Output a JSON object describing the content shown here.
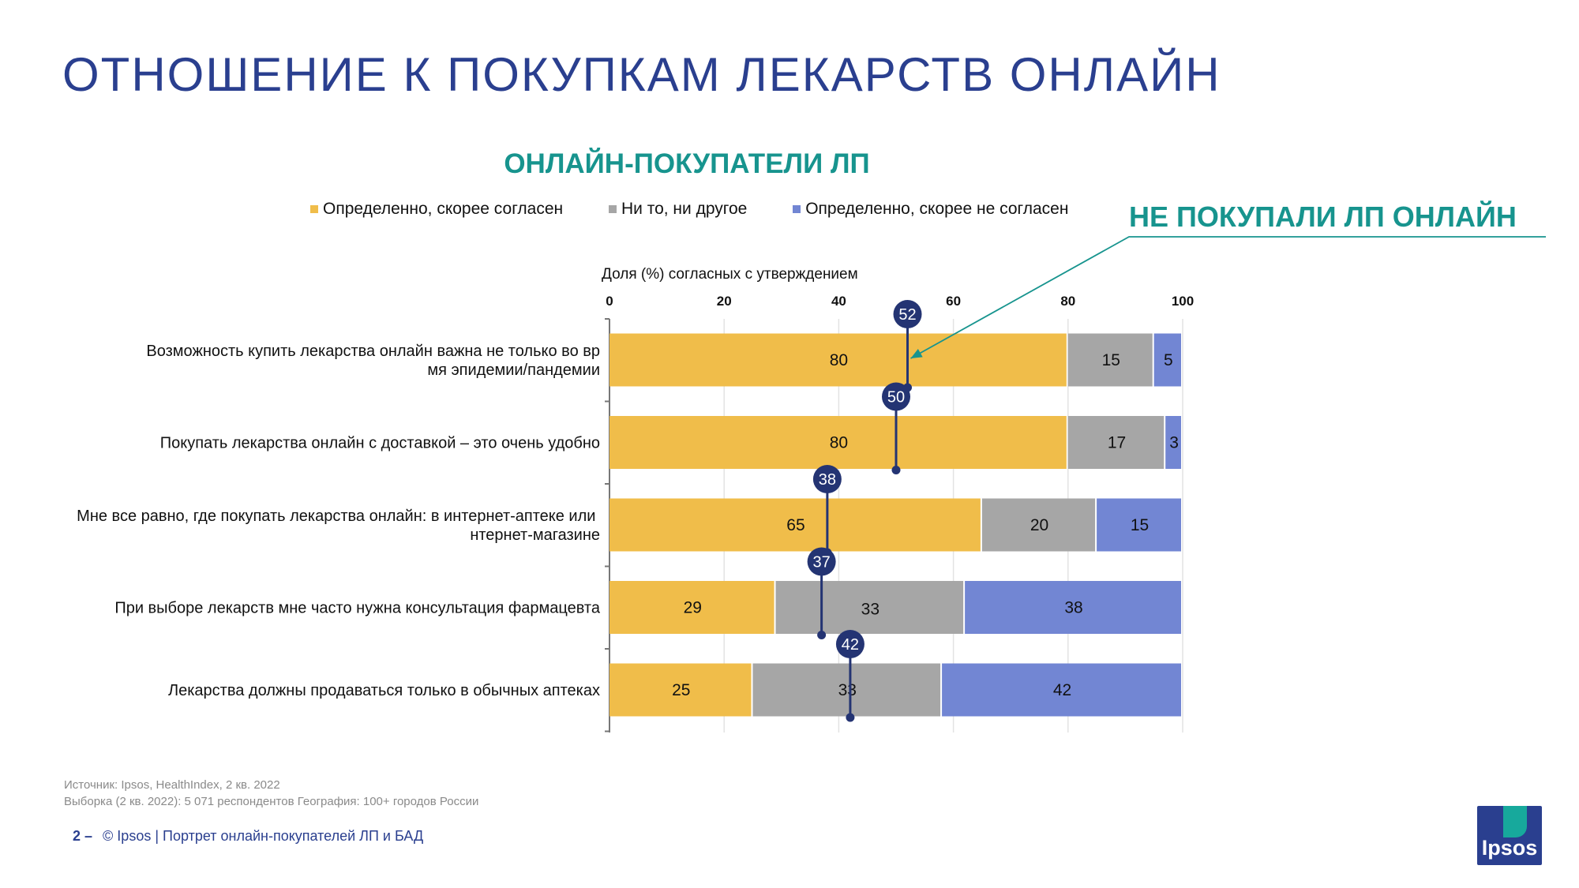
{
  "title": "ОТНОШЕНИЕ К ПОКУПКАМ ЛЕКАРСТВ ОНЛАЙН",
  "subtitle": "ОНЛАЙН-ПОКУПАТЕЛИ ЛП",
  "callout": "НЕ ПОКУПАЛИ ЛП ОНЛАЙН",
  "legend": [
    {
      "label": "Определенно, скорее согласен",
      "color": "#f0bd4a"
    },
    {
      "label": "Ни то, ни другое",
      "color": "#a6a6a6"
    },
    {
      "label": "Определенно, скорее не согласен",
      "color": "#7286d3"
    }
  ],
  "chart_data": {
    "type": "bar",
    "orientation": "horizontal",
    "stacked": true,
    "xlabel": "Доля (%) согласных с утверждением",
    "xlim": [
      0,
      100
    ],
    "xticks": [
      "0",
      "20",
      "40",
      "60",
      "80",
      "100"
    ],
    "categories": [
      "Возможность купить лекарства онлайн важна не только во время эпидемии/пандемии",
      "Покупать лекарства онлайн с доставкой – это очень удобно",
      "Мне все равно, где покупать лекарства онлайн: в интернет-аптеке или интернет-магазине",
      "При выборе лекарств мне часто нужна консультация фармацевта",
      "Лекарства должны продаваться только в обычных аптеках"
    ],
    "series": [
      {
        "name": "Определенно, скорее согласен",
        "values": [
          80,
          80,
          65,
          29,
          25
        ],
        "color": "#f0bd4a"
      },
      {
        "name": "Ни то, ни другое",
        "values": [
          15,
          17,
          20,
          33,
          33
        ],
        "color": "#a6a6a6"
      },
      {
        "name": "Определенно, скорее не согласен",
        "values": [
          5,
          3,
          15,
          38,
          42
        ],
        "color": "#7286d3"
      }
    ],
    "overlay": {
      "name": "НЕ ПОКУПАЛИ ЛП ОНЛАЙН",
      "values": [
        52,
        50,
        38,
        37,
        42
      ],
      "color": "#243473"
    },
    "grid": true
  },
  "footer": {
    "source": "Источник: Ipsos, HealthIndex, 2 кв. 2022",
    "sample": "Выборка (2 кв. 2022): 5 071 респондентов  География: 100+ городов России",
    "page_number": "2 –",
    "text": "© Ipsos | Портрет онлайн-покупателей ЛП и БАД"
  },
  "logo_text": "Ipsos"
}
